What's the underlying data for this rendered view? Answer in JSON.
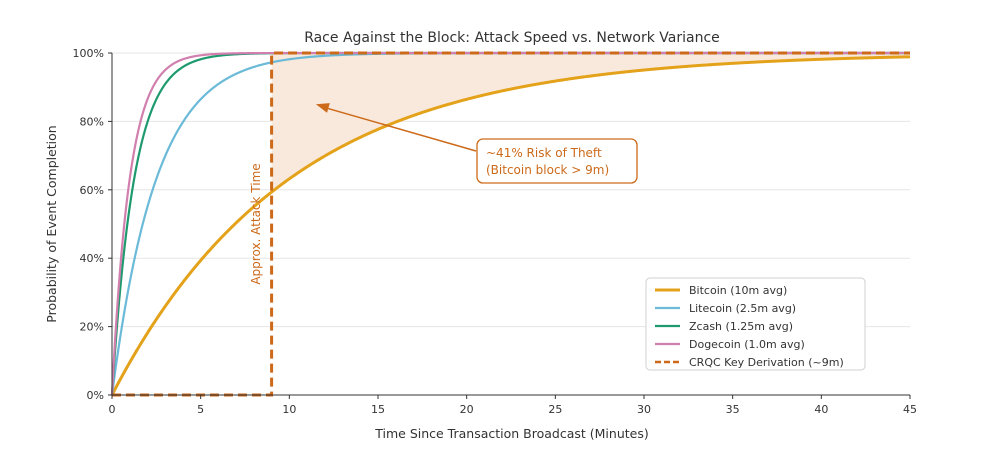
{
  "chart_data": {
    "type": "line",
    "title": "Race Against the Block: Attack Speed vs. Network Variance",
    "xlabel": "Time Since Transaction Broadcast (Minutes)",
    "ylabel": "Probability of Event Completion",
    "xlim": [
      0,
      45
    ],
    "ylim": [
      0,
      1
    ],
    "x_ticks": [
      0,
      5,
      10,
      15,
      20,
      25,
      30,
      35,
      40,
      45
    ],
    "x_tick_labels": [
      "0",
      "5",
      "10",
      "15",
      "20",
      "25",
      "30",
      "35",
      "40",
      "45"
    ],
    "y_ticks": [
      0,
      0.2,
      0.4,
      0.6,
      0.8,
      1.0
    ],
    "y_tick_labels": [
      "0%",
      "20%",
      "40%",
      "60%",
      "80%",
      "100%"
    ],
    "grid": true,
    "legend_position": "lower-right",
    "series": [
      {
        "name": "Bitcoin (10m avg)",
        "mean_minutes": 10,
        "formula": "1 - exp(-t/10)",
        "color": "#E3A21A"
      },
      {
        "name": "Litecoin (2.5m avg)",
        "mean_minutes": 2.5,
        "formula": "1 - exp(-t/2.5)",
        "color": "#6BBAD8"
      },
      {
        "name": "Zcash (1.25m avg)",
        "mean_minutes": 1.25,
        "formula": "1 - exp(-t/1.25)",
        "color": "#1E9A6E"
      },
      {
        "name": "Dogecoin (1.0m avg)",
        "mean_minutes": 1.0,
        "formula": "1 - exp(-t/1.0)",
        "color": "#D17FAE"
      }
    ],
    "step_series": {
      "name": "CRQC Key Derivation (~9m)",
      "step_at": 9,
      "color": "#CC6A1A"
    },
    "vertical_label": "Approx. Attack Time",
    "annotation": {
      "line1": "~41% Risk of Theft",
      "line2": "(Bitcoin block > 9m)",
      "arrow_target": [
        11.5,
        0.85
      ],
      "color": "#CC6A1A"
    },
    "shaded_region": {
      "from_x": 9,
      "to_x": 45,
      "between": [
        "Bitcoin (10m avg)",
        "100%"
      ],
      "color": "#F9E8DC"
    }
  }
}
